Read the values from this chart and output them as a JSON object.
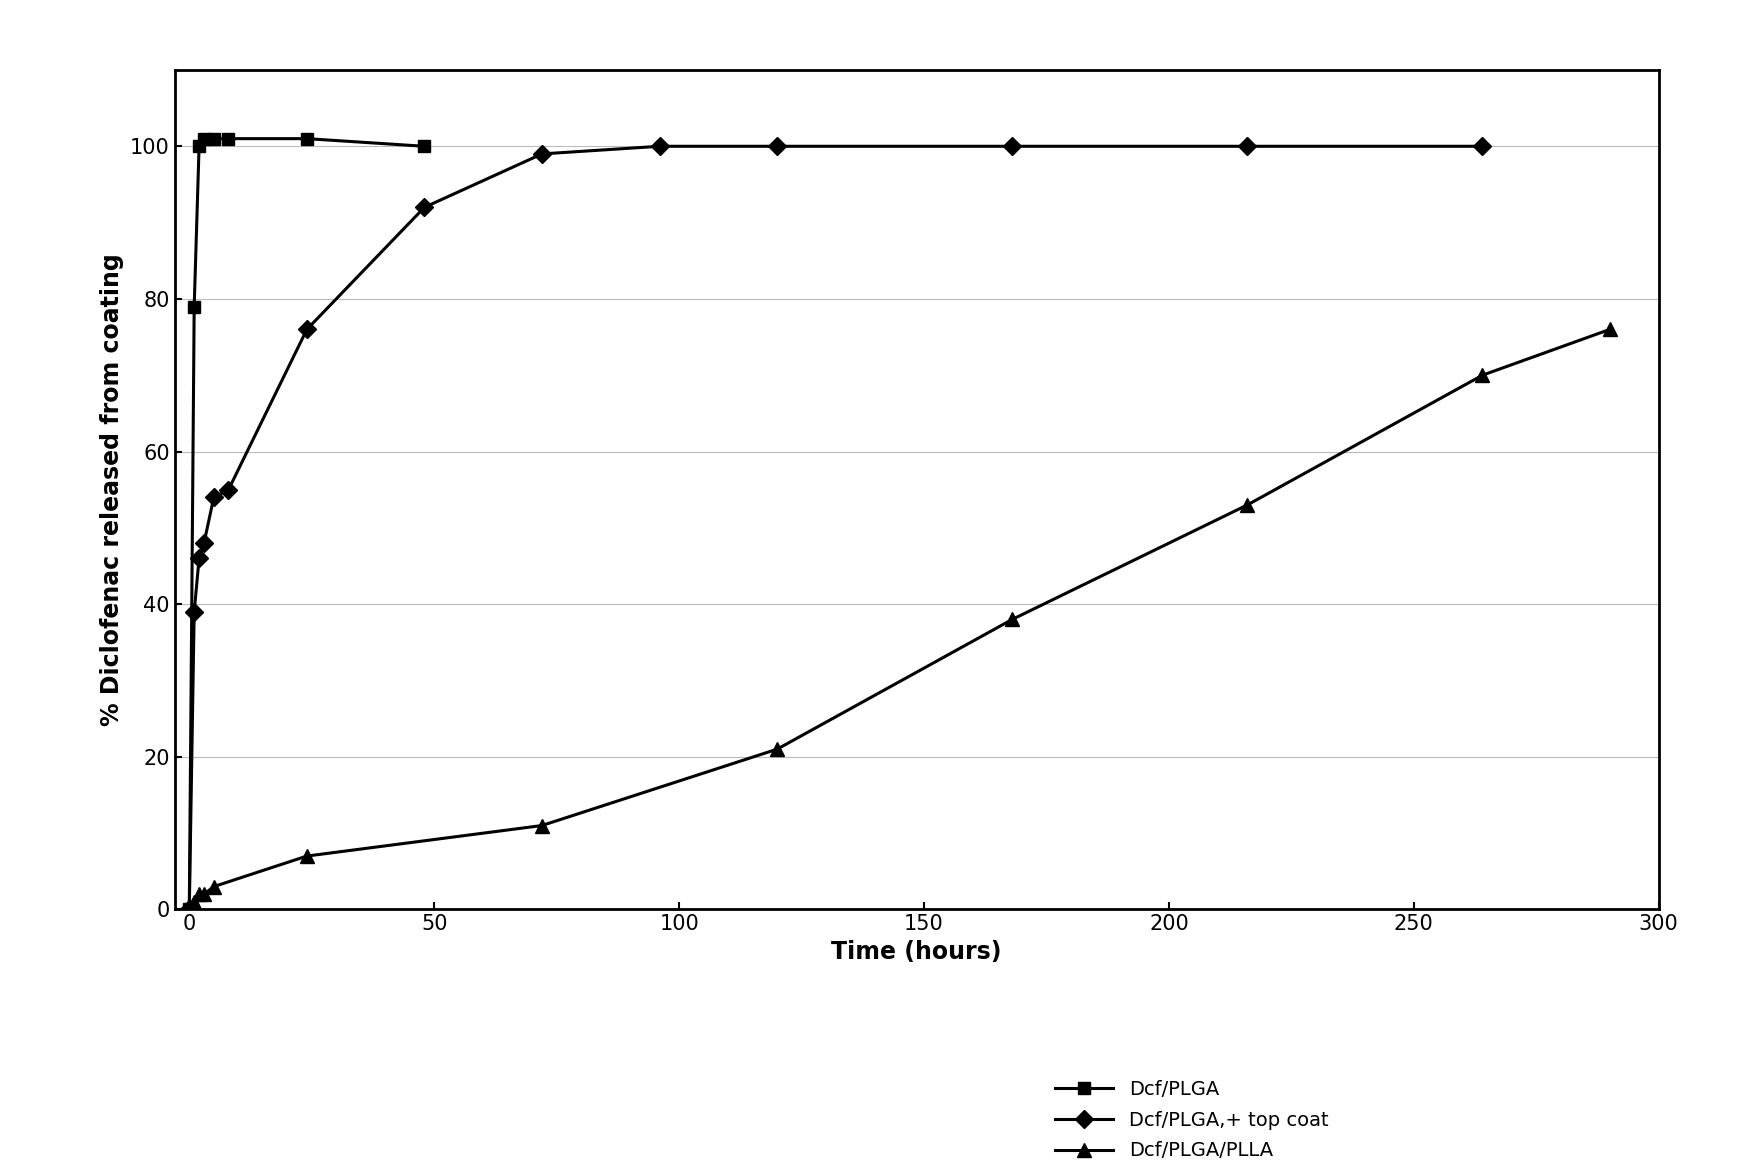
{
  "series": [
    {
      "label": "Dcf/PLGA",
      "x": [
        0,
        1,
        2,
        3,
        5,
        8,
        24,
        48
      ],
      "y": [
        0,
        79,
        100,
        101,
        101,
        101,
        101,
        100
      ],
      "marker": "s",
      "markersize": 9,
      "linewidth": 2.2,
      "color": "#000000"
    },
    {
      "label": "Dcf/PLGA,+ top coat",
      "x": [
        0,
        1,
        2,
        3,
        5,
        8,
        24,
        48,
        72,
        96,
        120,
        168,
        216,
        264
      ],
      "y": [
        0,
        39,
        46,
        48,
        54,
        55,
        76,
        92,
        99,
        100,
        100,
        100,
        100,
        100
      ],
      "marker": "D",
      "markersize": 9,
      "linewidth": 2.2,
      "color": "#000000"
    },
    {
      "label": "Dcf/PLGA/PLLA",
      "x": [
        0,
        1,
        2,
        3,
        5,
        24,
        72,
        120,
        168,
        216,
        264,
        290
      ],
      "y": [
        0,
        1,
        2,
        2,
        3,
        7,
        11,
        21,
        38,
        53,
        70,
        76
      ],
      "marker": "^",
      "markersize": 10,
      "linewidth": 2.2,
      "color": "#000000"
    }
  ],
  "xlabel": "Time (hours)",
  "ylabel": "% Diclofenac released from coating",
  "xlim": [
    -3,
    300
  ],
  "ylim": [
    0,
    110
  ],
  "xticks": [
    0,
    50,
    100,
    150,
    200,
    250,
    300
  ],
  "yticks": [
    0,
    20,
    40,
    60,
    80,
    100
  ],
  "grid_y": true,
  "background_color": "#ffffff",
  "tick_fontsize": 15,
  "label_fontsize": 17,
  "legend_fontsize": 14,
  "figsize": [
    17.46,
    11.66
  ],
  "dpi": 100
}
